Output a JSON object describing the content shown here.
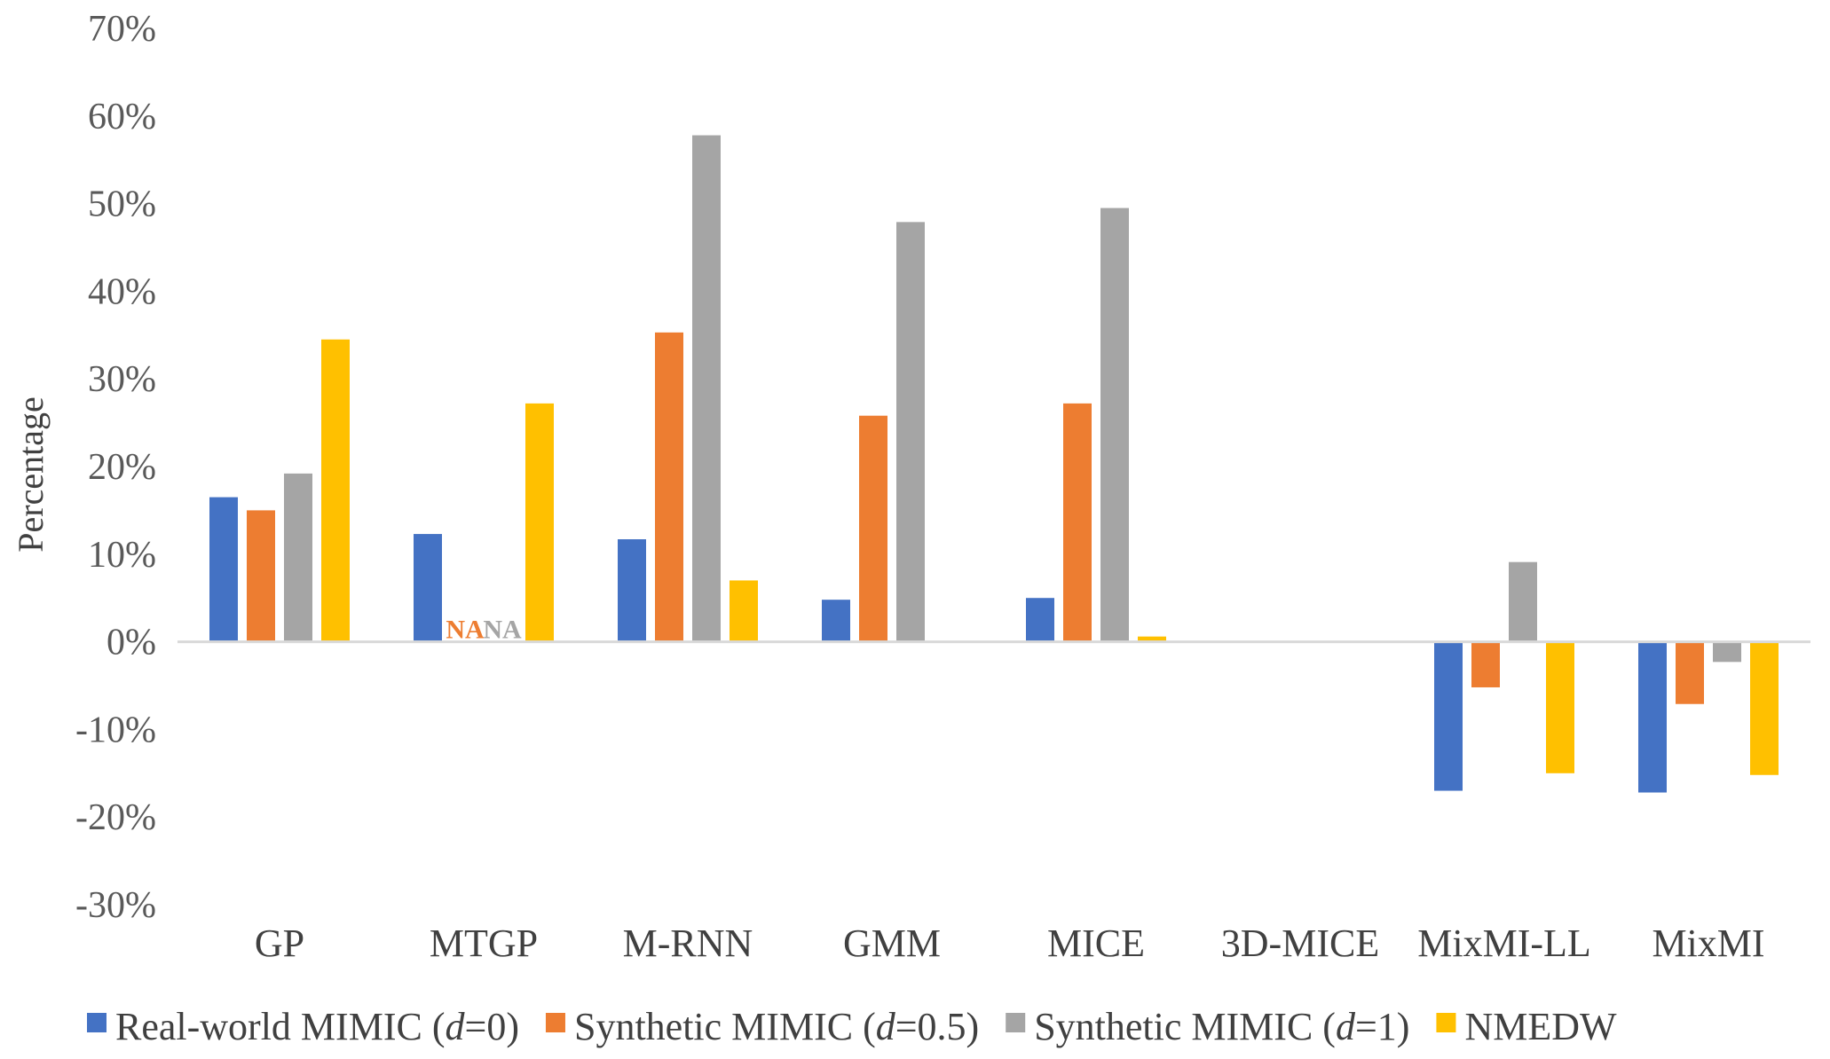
{
  "chart_data": {
    "type": "bar",
    "title": "",
    "xlabel": "",
    "ylabel": "Percentage",
    "ylim": [
      -30,
      70
    ],
    "yticks": [
      70,
      60,
      50,
      40,
      30,
      20,
      10,
      0,
      -10,
      -20,
      -30
    ],
    "ytick_labels": [
      "70%",
      "60%",
      "50%",
      "40%",
      "30%",
      "20%",
      "10%",
      "0%",
      "-10%",
      "-20%",
      "-30%"
    ],
    "grid": false,
    "legend_position": "bottom",
    "categories": [
      "GP",
      "MTGP",
      "M-RNN",
      "GMM",
      "MICE",
      "3D-MICE",
      "MixMI-LL",
      "MixMI"
    ],
    "series": [
      {
        "name": "Real-world MIMIC (d=0)",
        "legend_prefix": "Real-world MIMIC (",
        "legend_italic": "d",
        "legend_suffix": "=0)",
        "color": "#4472C4",
        "values": [
          16.5,
          12.3,
          11.7,
          4.8,
          5.0,
          null,
          -17.0,
          -17.2
        ]
      },
      {
        "name": "Synthetic MIMIC (d=0.5)",
        "legend_prefix": "Synthetic MIMIC (",
        "legend_italic": "d",
        "legend_suffix": "=0.5)",
        "color": "#ED7D31",
        "values": [
          15.0,
          null,
          35.3,
          25.8,
          27.2,
          null,
          -5.2,
          -7.1
        ]
      },
      {
        "name": "Synthetic MIMIC (d=1)",
        "legend_prefix": "Synthetic MIMIC (",
        "legend_italic": "d",
        "legend_suffix": "=1)",
        "color": "#A5A5A5",
        "values": [
          19.2,
          null,
          57.8,
          47.9,
          49.5,
          null,
          9.1,
          -2.3
        ]
      },
      {
        "name": "NMEDW",
        "legend_prefix": "NMEDW",
        "legend_italic": "",
        "legend_suffix": "",
        "color": "#FFC000",
        "values": [
          34.5,
          27.2,
          7.0,
          null,
          0.6,
          null,
          -15.0,
          -15.2
        ]
      }
    ],
    "annotations": [
      {
        "text": "NA",
        "category": "MTGP",
        "series_index": 1,
        "color": "#ED7D31"
      },
      {
        "text": "NA",
        "category": "MTGP",
        "series_index": 2,
        "color": "#A5A5A5"
      }
    ]
  }
}
